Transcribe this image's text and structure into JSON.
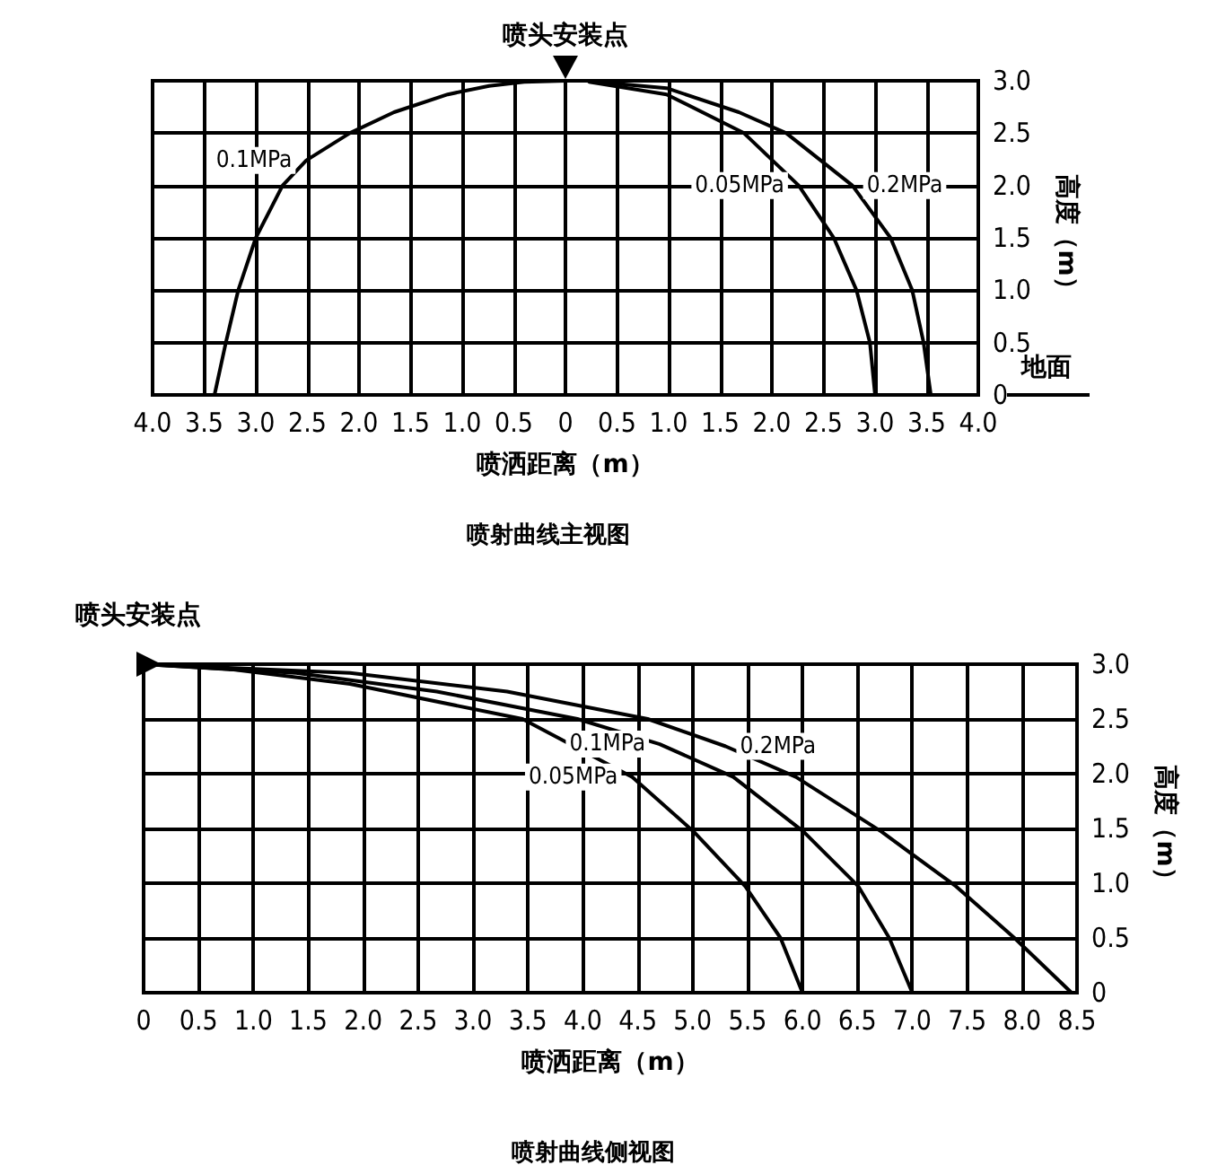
{
  "chart_data": [
    {
      "type": "line",
      "title": "喷射曲线主视图",
      "xlabel": "喷洒距离（m）",
      "ylabel": "高度（m）",
      "marker": "none",
      "line_style": "solid",
      "grid": true,
      "annotations": [
        {
          "text": "喷头安装点",
          "x": 0,
          "y": 3
        },
        "地面"
      ],
      "xlim": [
        -4,
        4
      ],
      "xticks": [
        {
          "value": -4,
          "label": "4.0"
        },
        {
          "value": -3.5,
          "label": "3.5"
        },
        {
          "value": -3,
          "label": "3.0"
        },
        {
          "value": -2.5,
          "label": "2.5"
        },
        {
          "value": -2,
          "label": "2.0"
        },
        {
          "value": -1.5,
          "label": "1.5"
        },
        {
          "value": -1,
          "label": "1.0"
        },
        {
          "value": -0.5,
          "label": "0.5"
        },
        0,
        0.5,
        {
          "value": 1,
          "label": "1.0"
        },
        1.5,
        {
          "value": 2,
          "label": "2.0"
        },
        2.5,
        {
          "value": 3,
          "label": "3.0"
        },
        3.5,
        {
          "value": 4,
          "label": "4.0"
        }
      ],
      "ylim": [
        0,
        3
      ],
      "yticks": [
        0,
        0.5,
        {
          "value": 1,
          "label": "1.0"
        },
        1.5,
        {
          "value": 2,
          "label": "2.0"
        },
        2.5,
        {
          "value": 3,
          "label": "3.0"
        }
      ],
      "series": [
        {
          "name": "0.1MPa",
          "color": "#000000",
          "x": [
            -3.4,
            -3.29,
            -3.17,
            -3.0,
            -2.74,
            -2.51,
            -2.09,
            -1.66,
            -1.14,
            -0.74,
            -0.4,
            0
          ],
          "values": [
            0,
            0.5,
            1.0,
            1.5,
            2.0,
            2.24,
            2.5,
            2.7,
            2.87,
            2.95,
            2.99,
            3
          ]
        },
        {
          "name": "0.05MPa",
          "color": "#000000",
          "x": [
            0.23,
            0.98,
            1.73,
            2.26,
            2.6,
            2.82,
            2.95,
            3.0
          ],
          "values": [
            2.99,
            2.87,
            2.5,
            2.0,
            1.5,
            1.0,
            0.5,
            0
          ]
        },
        {
          "name": "0.2MPa",
          "color": "#000000",
          "x": [
            0.3,
            0.98,
            1.68,
            2.14,
            2.78,
            3.15,
            3.36,
            3.47,
            3.54
          ],
          "values": [
            2.99,
            2.93,
            2.7,
            2.5,
            2.0,
            1.5,
            1.0,
            0.5,
            0
          ]
        }
      ]
    },
    {
      "type": "line",
      "title": "喷射曲线侧视图",
      "xlabel": "喷洒距离（m）",
      "ylabel": "高度（m）",
      "marker": "none",
      "line_style": "solid",
      "grid": true,
      "annotations": [
        {
          "text": "喷头安装点",
          "x": 0,
          "y": 3
        }
      ],
      "xlim": [
        0,
        8.5
      ],
      "xticks": [
        0,
        0.5,
        {
          "value": 1,
          "label": "1.0"
        },
        1.5,
        {
          "value": 2,
          "label": "2.0"
        },
        2.5,
        {
          "value": 3,
          "label": "3.0"
        },
        3.5,
        {
          "value": 4,
          "label": "4.0"
        },
        4.5,
        {
          "value": 5,
          "label": "5.0"
        },
        5.5,
        {
          "value": 6,
          "label": "6.0"
        },
        6.5,
        {
          "value": 7,
          "label": "7.0"
        },
        7.5,
        {
          "value": 8,
          "label": "8.0"
        },
        8.5
      ],
      "ylim": [
        0,
        3
      ],
      "yticks": [
        0,
        0.5,
        {
          "value": 1,
          "label": "1.0"
        },
        1.5,
        {
          "value": 2,
          "label": "2.0"
        },
        2.5,
        {
          "value": 3,
          "label": "3.0"
        }
      ],
      "series": [
        {
          "name": "0.05MPa",
          "color": "#000000",
          "x": [
            0,
            0.82,
            1.88,
            3.45,
            4.45,
            5.01,
            5.48,
            5.8,
            6.0
          ],
          "values": [
            3,
            2.95,
            2.82,
            2.5,
            1.97,
            1.47,
            0.97,
            0.5,
            0
          ]
        },
        {
          "name": "0.1MPa",
          "color": "#000000",
          "x": [
            0,
            1.39,
            2.67,
            3.95,
            4.7,
            5.37,
            6.01,
            6.51,
            6.79,
            7.0
          ],
          "values": [
            3,
            2.92,
            2.75,
            2.5,
            2.27,
            1.97,
            1.47,
            0.97,
            0.5,
            0
          ]
        },
        {
          "name": "0.2MPa",
          "color": "#000000",
          "x": [
            0,
            1.88,
            3.31,
            4.59,
            5.3,
            5.94,
            6.72,
            7.4,
            7.93,
            8.45
          ],
          "values": [
            3,
            2.92,
            2.75,
            2.5,
            2.25,
            1.97,
            1.47,
            0.97,
            0.5,
            0
          ]
        }
      ]
    }
  ]
}
